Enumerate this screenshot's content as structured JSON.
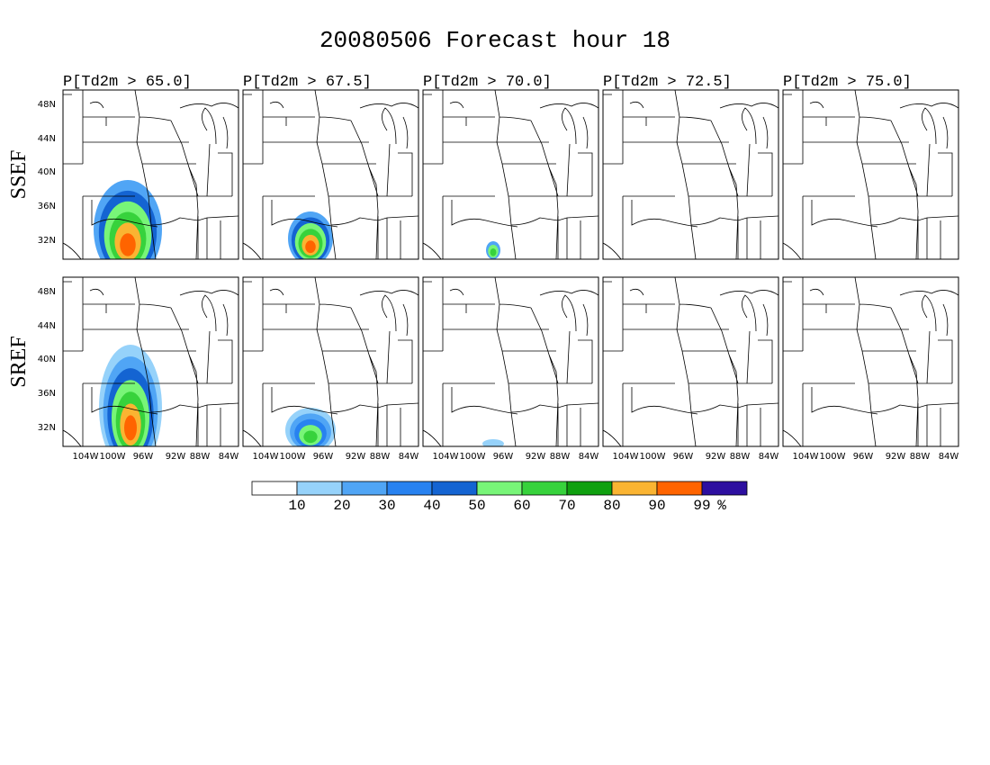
{
  "title": "20080506 Forecast hour 18",
  "columns": [
    "P[Td2m > 65.0]",
    "P[Td2m > 67.5]",
    "P[Td2m > 70.0]",
    "P[Td2m > 72.5]",
    "P[Td2m > 75.0]"
  ],
  "rows": [
    "SSEF",
    "SREF"
  ],
  "lat_labels": [
    "48N",
    "44N",
    "40N",
    "36N",
    "32N"
  ],
  "lon_labels": [
    "104W",
    "100W",
    "96W",
    "92W",
    "88W",
    "84W"
  ],
  "colorbar": {
    "colors": [
      "#ffffff",
      "#96d2fa",
      "#50a5f5",
      "#2882f0",
      "#1464d2",
      "#78f578",
      "#37d23c",
      "#0fa00f",
      "#fab432",
      "#ff6400",
      "#2d0fa0"
    ],
    "labels": [
      "10",
      "20",
      "30",
      "40",
      "50",
      "60",
      "70",
      "80",
      "90",
      "99",
      "%"
    ]
  }
}
